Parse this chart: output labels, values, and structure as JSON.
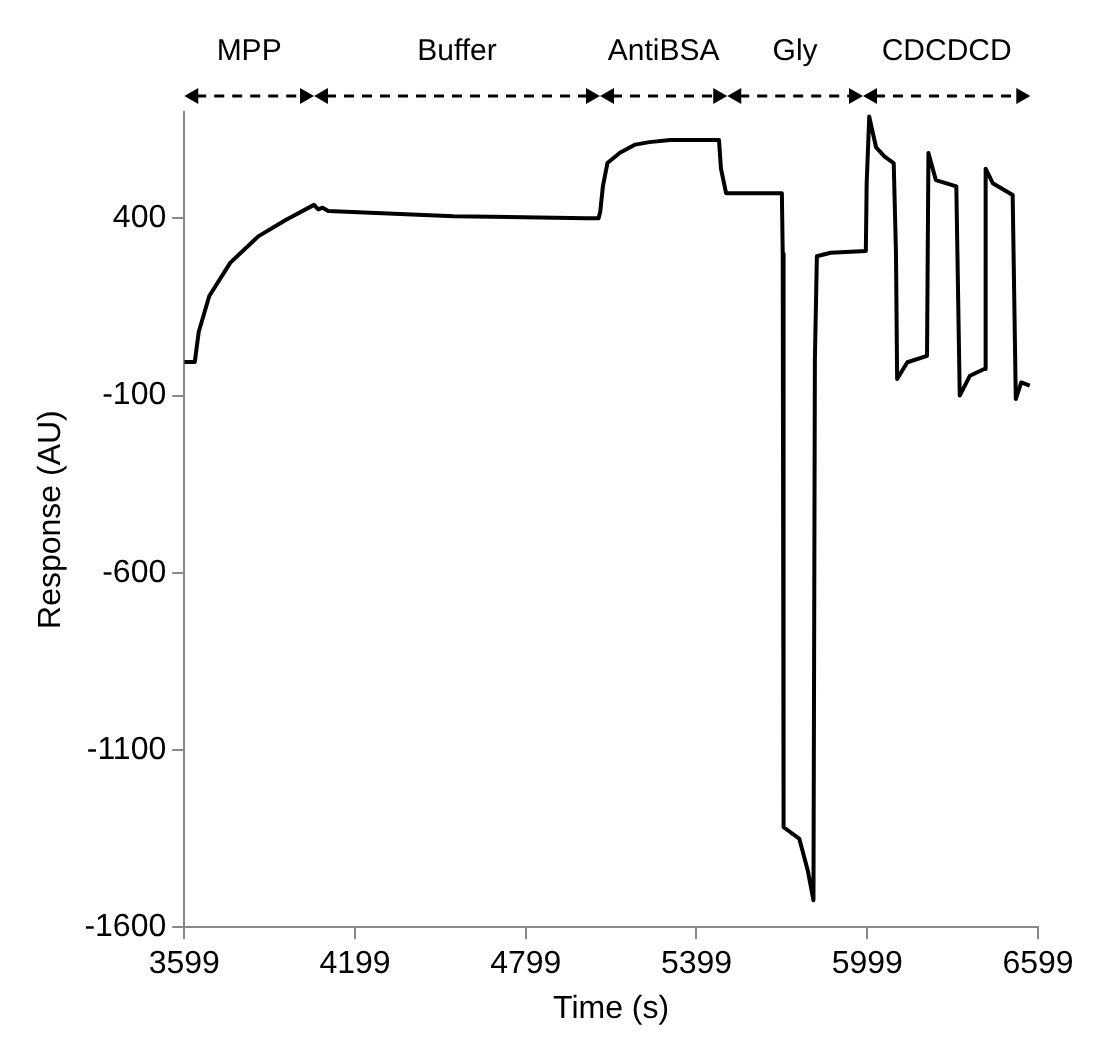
{
  "chart_data": {
    "type": "line",
    "xlabel": "Time (s)",
    "ylabel": "Response (AU)",
    "xlim": [
      3599,
      6599
    ],
    "xticks": [
      3599,
      4199,
      4799,
      5399,
      5999,
      6599
    ],
    "ylim": [
      -1600,
      700
    ],
    "yticks": [
      {
        "value": -1600,
        "label": "-1600"
      },
      {
        "value": -1100,
        "label": "-1100"
      },
      {
        "value": -600,
        "label": "-600"
      },
      {
        "value": -100,
        "label": "-100"
      },
      {
        "value": 400,
        "label": "400"
      }
    ],
    "grid": false,
    "legend": false,
    "marker": "none",
    "line_style": "solid",
    "annotations": [
      "MPP",
      "Buffer",
      "AntiBSA",
      "Gly",
      "CDCDCD"
    ],
    "series": [
      {
        "color": "#000000",
        "x": [
          3599,
          3636,
          3650,
          3687,
          3761,
          3859,
          3957,
          4055,
          4070,
          4085,
          4105,
          4546,
          5012,
          5055,
          5061,
          5070,
          5086,
          5130,
          5184,
          5233,
          5307,
          5478,
          5485,
          5503,
          5600,
          5699,
          5702,
          5705,
          5760,
          5790,
          5810,
          5815,
          5822,
          5870,
          5994,
          5997,
          6006,
          6030,
          6060,
          6092,
          6100,
          6104,
          6140,
          6209,
          6214,
          6240,
          6312,
          6324,
          6360,
          6410,
          6415,
          6440,
          6510,
          6521,
          6540,
          6570
        ],
        "values": [
          -5,
          -5,
          80,
          181,
          275,
          349,
          396,
          438,
          425,
          430,
          421,
          406,
          400,
          400,
          420,
          490,
          556,
          585,
          608,
          615,
          621,
          621,
          540,
          471,
          471,
          471,
          300,
          -1318,
          -1350,
          -1440,
          -1524,
          0,
          293,
          303,
          308,
          500,
          687,
          600,
          574,
          556,
          300,
          -53,
          -6,
          12,
          584,
          508,
          490,
          -100,
          -44,
          -25,
          540,
          499,
          466,
          -110,
          -63,
          -72
        ]
      }
    ]
  }
}
